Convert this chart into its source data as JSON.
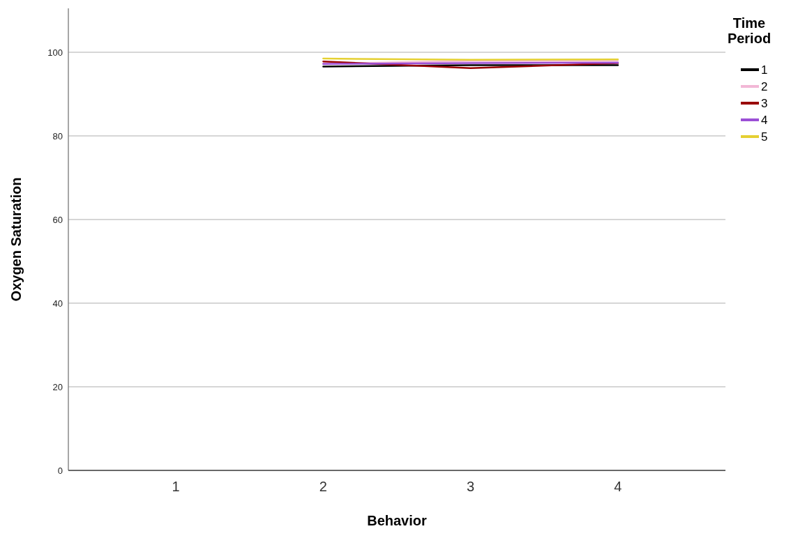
{
  "chart_data": {
    "type": "line",
    "xlabel": "Behavior",
    "ylabel": "Oxygen Saturation",
    "legend_title": "Time Period",
    "categories": [
      "1",
      "2",
      "3",
      "4"
    ],
    "series": [
      {
        "name": "1",
        "color": "#000000",
        "values": [
          null,
          96.6,
          96.9,
          96.9
        ]
      },
      {
        "name": "2",
        "color": "#f2b8d6",
        "values": [
          null,
          97.3,
          97.9,
          97.9
        ]
      },
      {
        "name": "3",
        "color": "#990000",
        "values": [
          null,
          97.8,
          96.2,
          97.4
        ]
      },
      {
        "name": "4",
        "color": "#9b4fd6",
        "values": [
          null,
          97.2,
          97.4,
          97.5
        ]
      },
      {
        "name": "5",
        "color": "#e5d032",
        "values": [
          null,
          98.5,
          98.2,
          98.3
        ]
      }
    ],
    "ylim": [
      0,
      110.5
    ],
    "yticks": [
      0,
      20,
      40,
      60,
      80,
      100
    ],
    "grid": "y",
    "legend": "top right",
    "line_style": "solid"
  }
}
